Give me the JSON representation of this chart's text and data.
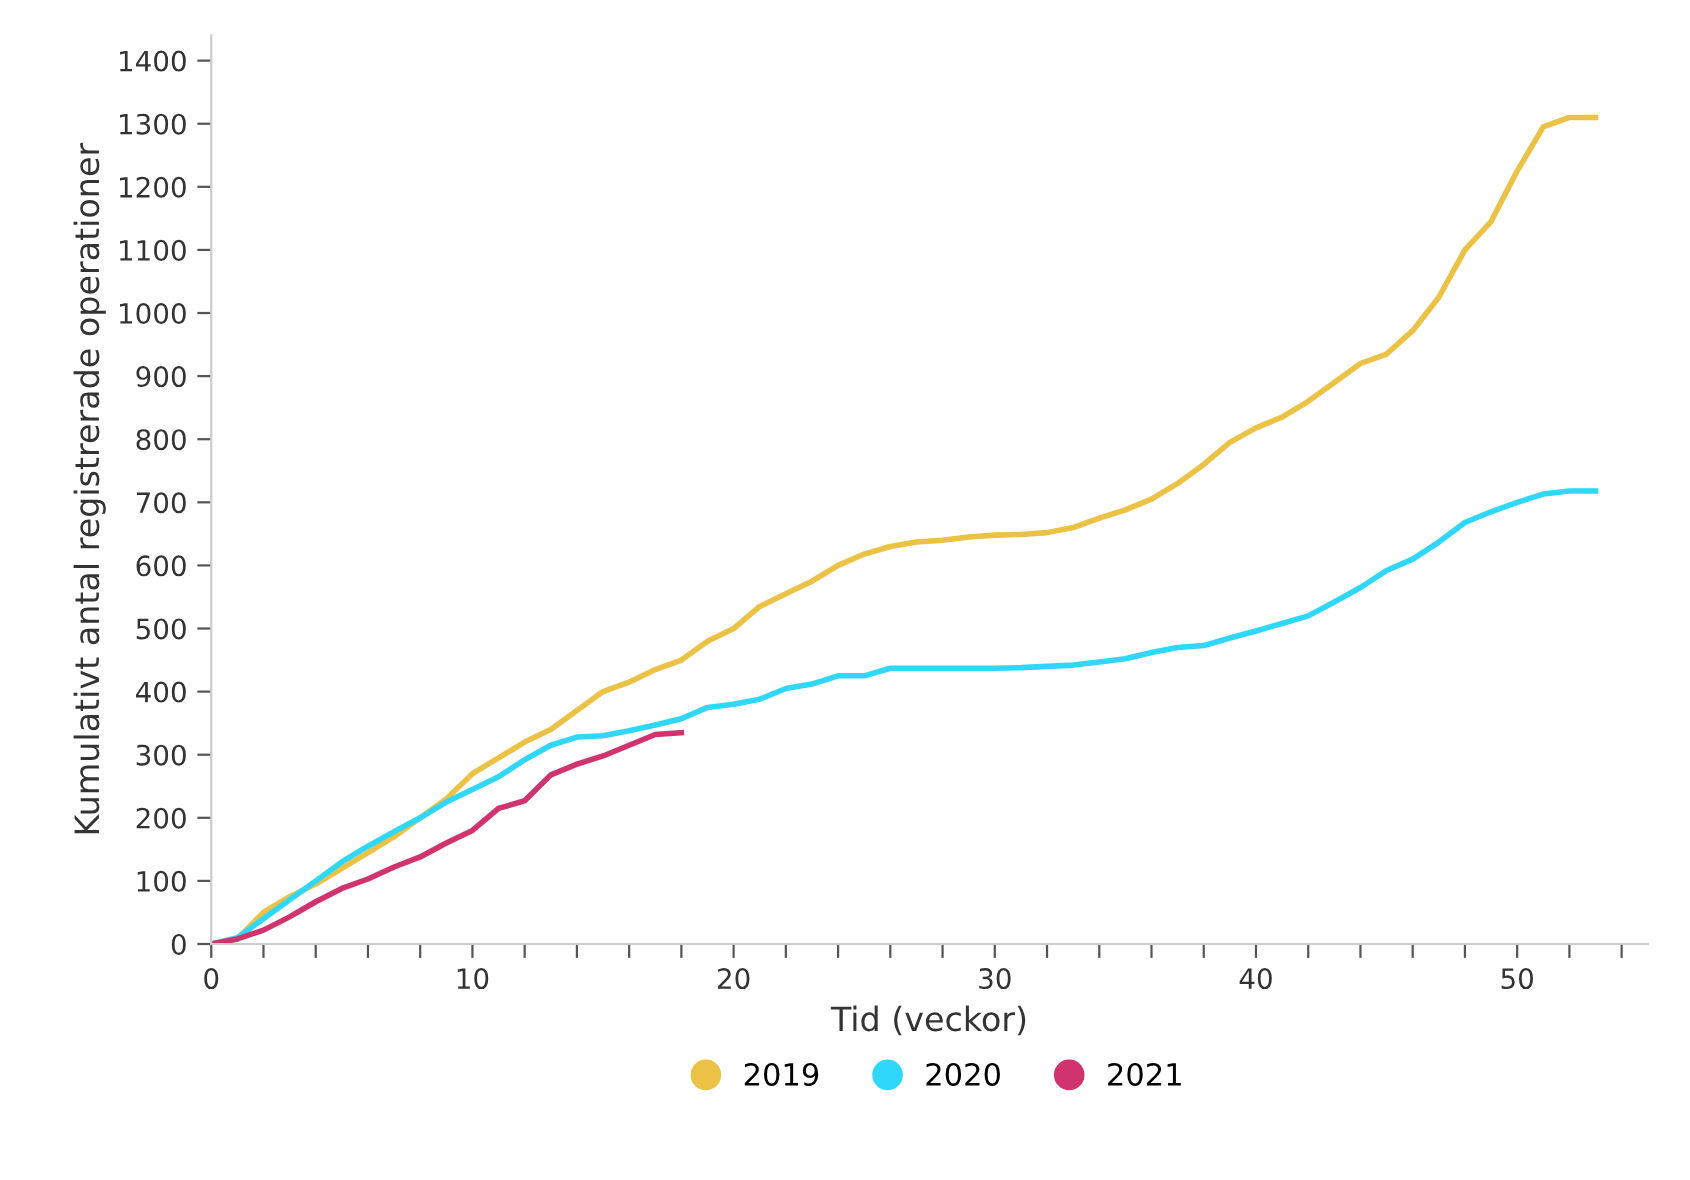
{
  "chart_data": {
    "type": "line",
    "xlabel": "Tid (veckor)",
    "ylabel": "Kumulativt antal registrerade operationer",
    "xlim": [
      0,
      55
    ],
    "xticks": [
      0,
      {
        "value": 2,
        "label": null
      },
      {
        "value": 4,
        "label": null
      },
      {
        "value": 6,
        "label": null
      },
      {
        "value": 8,
        "label": null
      },
      10,
      {
        "value": 12,
        "label": null
      },
      {
        "value": 14,
        "label": null
      },
      {
        "value": 16,
        "label": null
      },
      {
        "value": 18,
        "label": null
      },
      20,
      {
        "value": 22,
        "label": null
      },
      {
        "value": 24,
        "label": null
      },
      {
        "value": 26,
        "label": null
      },
      {
        "value": 28,
        "label": null
      },
      30,
      {
        "value": 32,
        "label": null
      },
      {
        "value": 34,
        "label": null
      },
      {
        "value": 36,
        "label": null
      },
      {
        "value": 38,
        "label": null
      },
      40,
      {
        "value": 42,
        "label": null
      },
      {
        "value": 44,
        "label": null
      },
      {
        "value": 46,
        "label": null
      },
      {
        "value": 48,
        "label": null
      },
      50,
      {
        "value": 52,
        "label": null
      },
      {
        "value": 54,
        "label": null
      }
    ],
    "ylim": [
      0,
      1440
    ],
    "yticks": [
      0,
      100,
      200,
      300,
      400,
      500,
      600,
      700,
      800,
      900,
      1000,
      1100,
      1200,
      1300,
      1400
    ],
    "grid": false,
    "legend": "bottom",
    "marker": "none",
    "line_style": "solid",
    "series": [
      {
        "name": "2019",
        "color": "#ebc246",
        "x": [
          0,
          1,
          2,
          3,
          4,
          5,
          6,
          7,
          8,
          9,
          10,
          11,
          12,
          13,
          14,
          15,
          16,
          17,
          18,
          19,
          20,
          21,
          22,
          23,
          24,
          25,
          26,
          27,
          28,
          29,
          30,
          31,
          32,
          33,
          34,
          35,
          36,
          37,
          38,
          39,
          40,
          41,
          42,
          43,
          44,
          45,
          46,
          47,
          48,
          49,
          50,
          51,
          52,
          53
        ],
        "values": [
          0,
          8,
          50,
          75,
          95,
          120,
          145,
          170,
          200,
          230,
          270,
          295,
          320,
          340,
          370,
          400,
          415,
          435,
          450,
          480,
          500,
          535,
          555,
          575,
          600,
          618,
          630,
          637,
          640,
          645,
          648,
          649,
          652,
          660,
          675,
          688,
          705,
          730,
          760,
          795,
          818,
          835,
          860,
          890,
          920,
          935,
          972,
          1025,
          1100,
          1145,
          1225,
          1295,
          1310,
          1310
        ]
      },
      {
        "name": "2020",
        "color": "#2fd7fb",
        "x": [
          0,
          1,
          2,
          3,
          4,
          5,
          6,
          7,
          8,
          9,
          10,
          11,
          12,
          13,
          14,
          15,
          16,
          17,
          18,
          19,
          20,
          21,
          22,
          23,
          24,
          25,
          26,
          27,
          28,
          29,
          30,
          31,
          32,
          33,
          34,
          35,
          36,
          37,
          38,
          39,
          40,
          41,
          42,
          43,
          44,
          45,
          46,
          47,
          48,
          49,
          50,
          51,
          52,
          53
        ],
        "values": [
          0,
          10,
          40,
          70,
          100,
          130,
          155,
          178,
          200,
          225,
          245,
          265,
          292,
          315,
          328,
          330,
          338,
          347,
          357,
          375,
          380,
          388,
          405,
          412,
          425,
          425,
          437,
          437,
          437,
          437,
          437,
          438,
          440,
          442,
          447,
          452,
          462,
          470,
          473,
          485,
          496,
          508,
          520,
          542,
          565,
          592,
          610,
          637,
          668,
          685,
          700,
          713,
          718,
          718
        ]
      },
      {
        "name": "2021",
        "color": "#d1336f",
        "x": [
          0,
          1,
          2,
          3,
          4,
          5,
          6,
          7,
          8,
          9,
          10,
          11,
          12,
          13,
          14,
          15,
          16,
          17,
          18
        ],
        "values": [
          0,
          8,
          22,
          43,
          67,
          88,
          103,
          122,
          138,
          160,
          180,
          215,
          227,
          268,
          285,
          298,
          315,
          332,
          335
        ]
      }
    ]
  }
}
